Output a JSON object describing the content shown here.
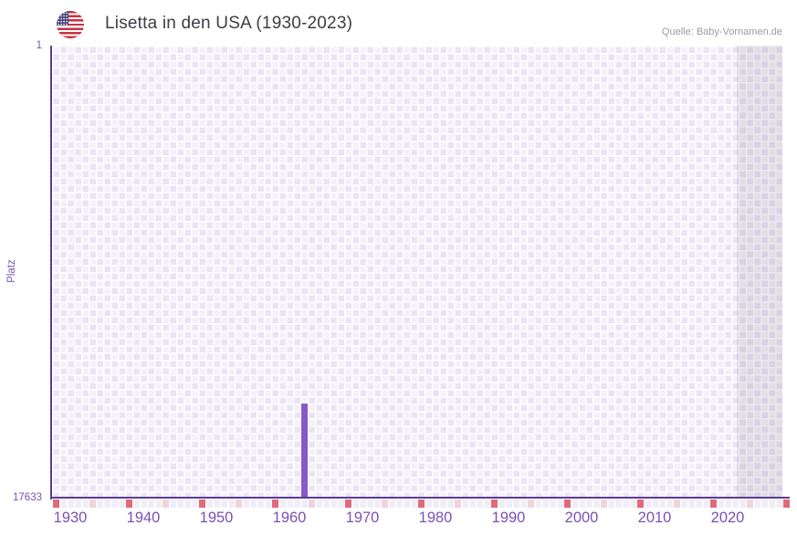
{
  "header": {
    "title": "Lisetta in den USA (1930-2023)",
    "source": "Quelle: Baby-Vornamen.de",
    "flag_icon": "us-flag"
  },
  "chart_data": {
    "type": "bar",
    "title": "Lisetta in den USA (1930-2023)",
    "xlabel": "",
    "ylabel": "Platz",
    "y_axis": {
      "top_tick": "1",
      "bottom_tick": "17633",
      "best_rank": 1,
      "worst_rank": 17633,
      "inverted": true
    },
    "x_axis": {
      "start_year": 1928,
      "end_year": 2028,
      "tick_years": [
        1930,
        1940,
        1950,
        1960,
        1970,
        1980,
        1990,
        2000,
        2010,
        2020
      ]
    },
    "bars": [
      {
        "year": 1962,
        "rank": 13950
      }
    ],
    "below_axis_marks": {
      "dark_years": [
        1928,
        1938,
        1948,
        1958,
        1968,
        1978,
        1988,
        1998,
        2008,
        2018,
        2028
      ],
      "light_years": [
        1933,
        1943,
        1953,
        1963,
        1973,
        1983,
        1993,
        2003,
        2013,
        2023
      ]
    },
    "no_data_band": {
      "from_year": 2022
    },
    "colors": {
      "bar": "#8a57c7",
      "axis_line": "#5b3c96",
      "axis_text": "#7b50b4",
      "mark_dark": "#e0697a",
      "mark_light": "#f3d3da",
      "grid_light": "#f5f1fb",
      "grid_dark": "#eae4f6",
      "title_text": "#3d3d47",
      "source_text": "#9b9ba4"
    }
  }
}
